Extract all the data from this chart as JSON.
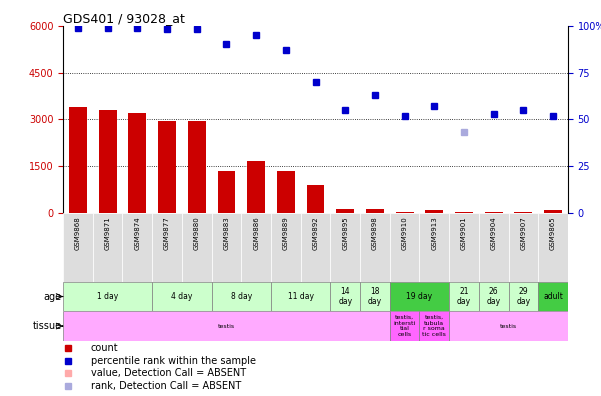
{
  "title": "GDS401 / 93028_at",
  "samples": [
    "GSM9868",
    "GSM9871",
    "GSM9874",
    "GSM9877",
    "GSM9880",
    "GSM9883",
    "GSM9886",
    "GSM9889",
    "GSM9892",
    "GSM9895",
    "GSM9898",
    "GSM9910",
    "GSM9913",
    "GSM9901",
    "GSM9904",
    "GSM9907",
    "GSM9865"
  ],
  "bar_values": [
    3400,
    3300,
    3200,
    2950,
    2950,
    1350,
    1650,
    1350,
    900,
    120,
    130,
    25,
    80,
    40,
    25,
    25,
    90
  ],
  "absent_bar_idx": [],
  "dot_values": [
    99,
    99,
    99,
    98,
    98,
    90,
    95,
    87,
    70,
    55,
    63,
    52,
    57,
    43,
    53,
    55,
    52
  ],
  "absent_dot_idx": [
    13
  ],
  "ylim_left": [
    0,
    6000
  ],
  "ylim_right": [
    0,
    100
  ],
  "yticks_left": [
    0,
    1500,
    3000,
    4500,
    6000
  ],
  "yticks_right": [
    0,
    25,
    50,
    75,
    100
  ],
  "bar_color": "#cc0000",
  "dot_color": "#0000cc",
  "absent_bar_color": "#ffaaaa",
  "absent_dot_color": "#aaaadd",
  "age_groups": [
    {
      "label": "1 day",
      "start": 0,
      "end": 3,
      "color": "#ccffcc"
    },
    {
      "label": "4 day",
      "start": 3,
      "end": 5,
      "color": "#ccffcc"
    },
    {
      "label": "8 day",
      "start": 5,
      "end": 7,
      "color": "#ccffcc"
    },
    {
      "label": "11 day",
      "start": 7,
      "end": 9,
      "color": "#ccffcc"
    },
    {
      "label": "14\nday",
      "start": 9,
      "end": 10,
      "color": "#ccffcc"
    },
    {
      "label": "18\nday",
      "start": 10,
      "end": 11,
      "color": "#ccffcc"
    },
    {
      "label": "19 day",
      "start": 11,
      "end": 13,
      "color": "#44cc44"
    },
    {
      "label": "21\nday",
      "start": 13,
      "end": 14,
      "color": "#ccffcc"
    },
    {
      "label": "26\nday",
      "start": 14,
      "end": 15,
      "color": "#ccffcc"
    },
    {
      "label": "29\nday",
      "start": 15,
      "end": 16,
      "color": "#ccffcc"
    },
    {
      "label": "adult",
      "start": 16,
      "end": 17,
      "color": "#44cc44"
    }
  ],
  "tissue_groups": [
    {
      "label": "testis",
      "start": 0,
      "end": 11,
      "color": "#ffaaff"
    },
    {
      "label": "testis,\nintersti\ntial\ncells",
      "start": 11,
      "end": 12,
      "color": "#ff66ff"
    },
    {
      "label": "testis,\ntubula\nr soma\ntic cells",
      "start": 12,
      "end": 13,
      "color": "#ff66ff"
    },
    {
      "label": "testis",
      "start": 13,
      "end": 17,
      "color": "#ffaaff"
    }
  ],
  "age_label": "age",
  "tissue_label": "tissue",
  "bg_color": "#ffffff",
  "tick_color_left": "#cc0000",
  "tick_color_right": "#0000cc",
  "sample_bg": "#dddddd"
}
